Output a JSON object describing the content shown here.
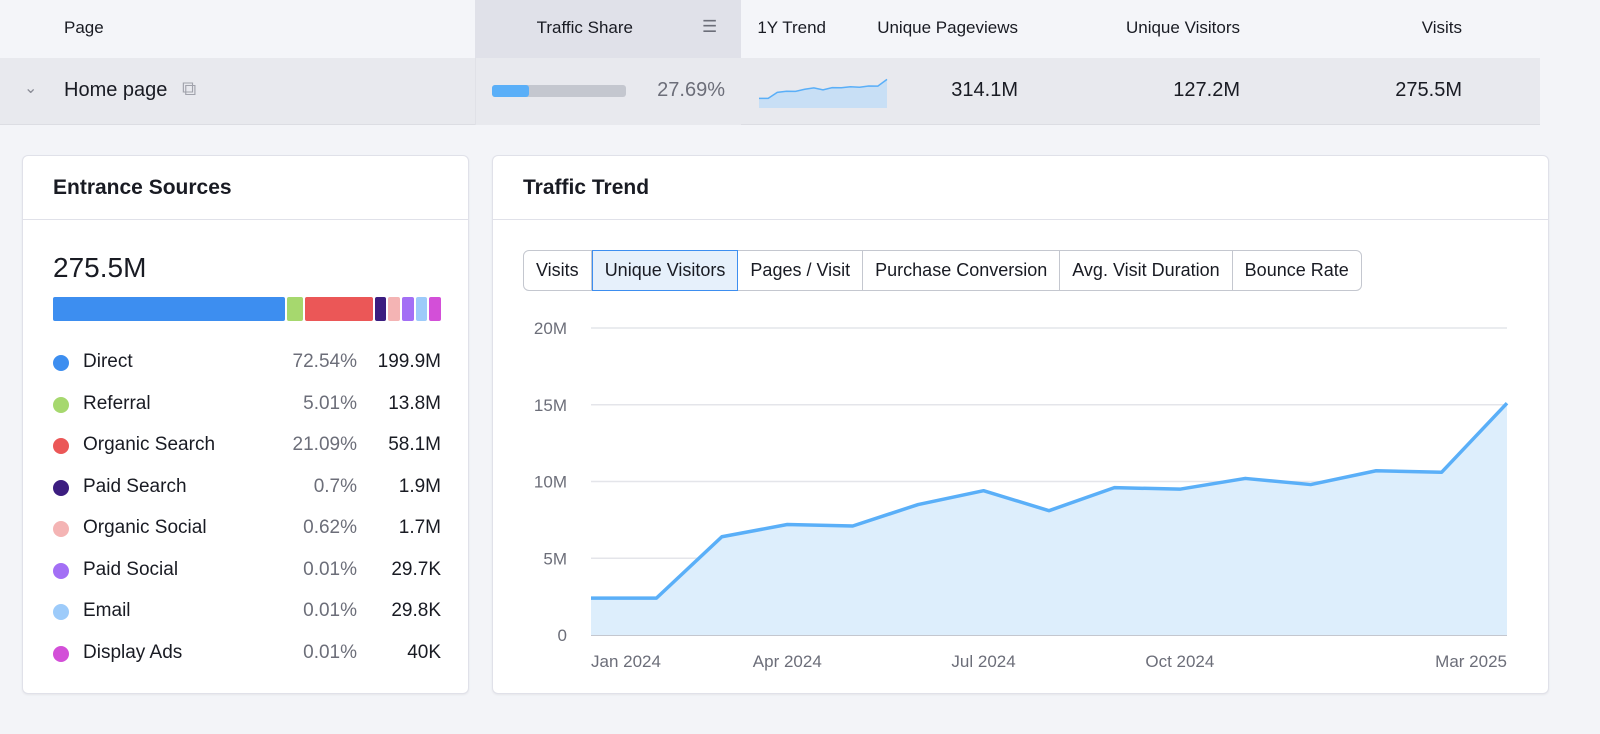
{
  "table": {
    "headers": {
      "page": "Page",
      "traffic_share": "Traffic Share",
      "trend": "1Y Trend",
      "unique_pageviews": "Unique Pageviews",
      "unique_visitors": "Unique Visitors",
      "visits": "Visits"
    },
    "row": {
      "page": "Home page",
      "traffic_share": "27.69%",
      "traffic_share_fraction": 0.2769,
      "unique_pageviews": "314.1M",
      "unique_visitors": "127.2M",
      "visits": "275.5M"
    }
  },
  "entrance": {
    "title": "Entrance Sources",
    "total": "275.5M",
    "sources": [
      {
        "name": "Direct",
        "pct": "72.54%",
        "value": "199.9M",
        "color": "#3d8ef0"
      },
      {
        "name": "Referral",
        "pct": "5.01%",
        "value": "13.8M",
        "color": "#a6d86e"
      },
      {
        "name": "Organic Search",
        "pct": "21.09%",
        "value": "58.1M",
        "color": "#eb5757"
      },
      {
        "name": "Paid Search",
        "pct": "0.7%",
        "value": "1.9M",
        "color": "#3c1d80"
      },
      {
        "name": "Organic Social",
        "pct": "0.62%",
        "value": "1.7M",
        "color": "#f4b4b4"
      },
      {
        "name": "Paid Social",
        "pct": "0.01%",
        "value": "29.7K",
        "color": "#a36ff5"
      },
      {
        "name": "Email",
        "pct": "0.01%",
        "value": "29.8K",
        "color": "#9dcbfa"
      },
      {
        "name": "Display Ads",
        "pct": "0.01%",
        "value": "40K",
        "color": "#d34fd8"
      }
    ]
  },
  "trend": {
    "title": "Traffic Trend",
    "tabs": [
      "Visits",
      "Unique Visitors",
      "Pages / Visit",
      "Purchase Conversion",
      "Avg. Visit Duration",
      "Bounce Rate"
    ],
    "active_tab": "Unique Visitors"
  },
  "chart_data": {
    "type": "area",
    "x": [
      "Jan 2024",
      "Feb 2024",
      "Mar 2024",
      "Apr 2024",
      "May 2024",
      "Jun 2024",
      "Jul 2024",
      "Aug 2024",
      "Sep 2024",
      "Oct 2024",
      "Nov 2024",
      "Dec 2024",
      "Jan 2025",
      "Feb 2025",
      "Mar 2025"
    ],
    "values": [
      2.4,
      2.4,
      6.4,
      7.2,
      7.1,
      8.5,
      9.4,
      8.1,
      9.6,
      9.5,
      10.2,
      9.8,
      10.7,
      10.6,
      15.1
    ],
    "unit": "M",
    "yticks": [
      "0",
      "5M",
      "10M",
      "15M",
      "20M"
    ],
    "xticks": [
      "Jan 2024",
      "Apr 2024",
      "Jul 2024",
      "Oct 2024",
      "Mar 2025"
    ],
    "ylim": [
      0,
      20
    ],
    "grid": true,
    "color": "#5aaff8"
  }
}
